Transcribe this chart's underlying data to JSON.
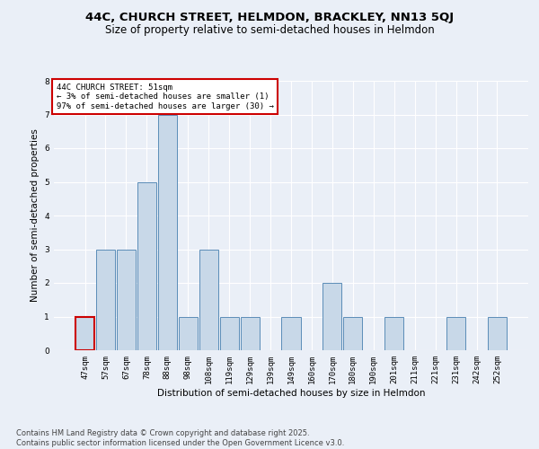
{
  "title_line1": "44C, CHURCH STREET, HELMDON, BRACKLEY, NN13 5QJ",
  "title_line2": "Size of property relative to semi-detached houses in Helmdon",
  "xlabel": "Distribution of semi-detached houses by size in Helmdon",
  "ylabel": "Number of semi-detached properties",
  "categories": [
    "47sqm",
    "57sqm",
    "67sqm",
    "78sqm",
    "88sqm",
    "98sqm",
    "108sqm",
    "119sqm",
    "129sqm",
    "139sqm",
    "149sqm",
    "160sqm",
    "170sqm",
    "180sqm",
    "190sqm",
    "201sqm",
    "211sqm",
    "221sqm",
    "231sqm",
    "242sqm",
    "252sqm"
  ],
  "values": [
    1,
    3,
    3,
    5,
    7,
    1,
    3,
    1,
    1,
    0,
    1,
    0,
    2,
    1,
    0,
    1,
    0,
    0,
    1,
    0,
    1
  ],
  "bar_color": "#c8d8e8",
  "bar_edge_color": "#5b8db8",
  "highlight_bar_index": 0,
  "highlight_bar_edge_color": "#cc0000",
  "annotation_text": "44C CHURCH STREET: 51sqm\n← 3% of semi-detached houses are smaller (1)\n97% of semi-detached houses are larger (30) →",
  "annotation_box_color": "#ffffff",
  "annotation_box_edge_color": "#cc0000",
  "ylim": [
    0,
    8
  ],
  "yticks": [
    0,
    1,
    2,
    3,
    4,
    5,
    6,
    7,
    8
  ],
  "footnote": "Contains HM Land Registry data © Crown copyright and database right 2025.\nContains public sector information licensed under the Open Government Licence v3.0.",
  "bg_color": "#eaeff7",
  "plot_bg_color": "#eaeff7",
  "grid_color": "#ffffff",
  "title_fontsize": 9.5,
  "subtitle_fontsize": 8.5,
  "axis_label_fontsize": 7.5,
  "tick_fontsize": 6.5,
  "annotation_fontsize": 6.5,
  "footnote_fontsize": 6.0
}
